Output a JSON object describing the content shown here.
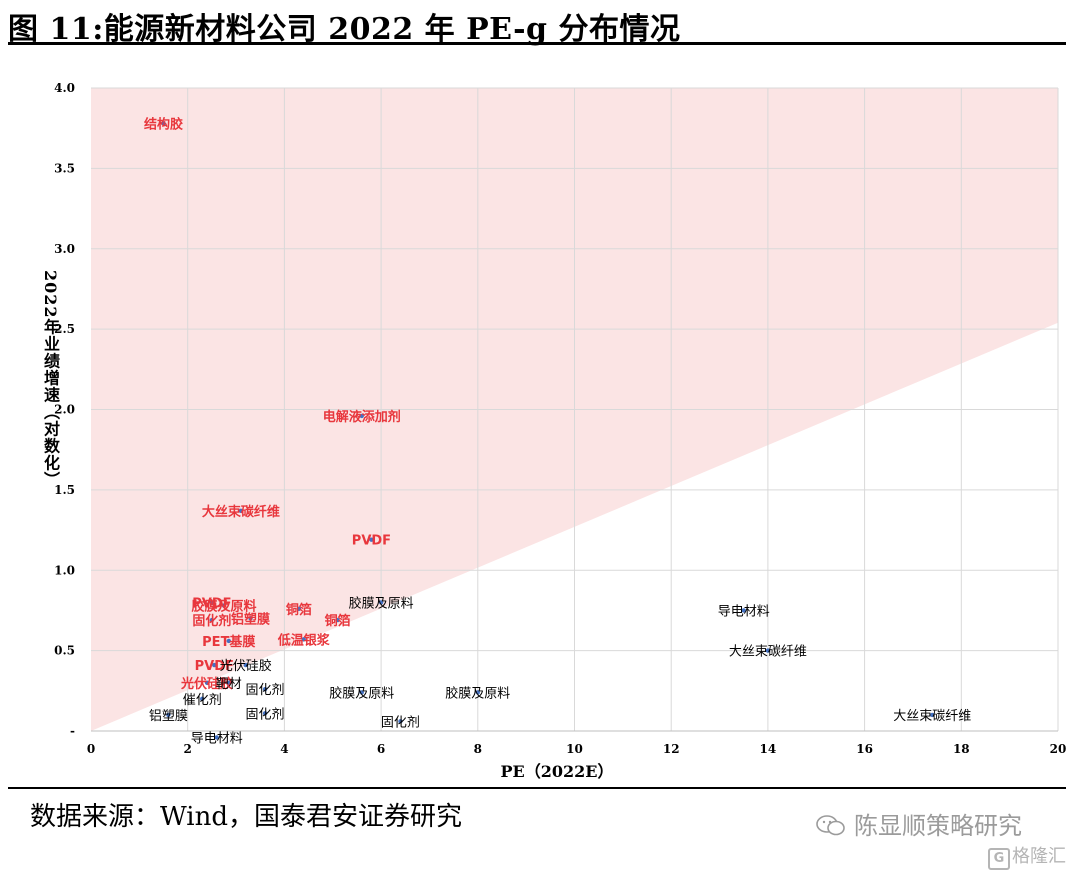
{
  "header": {
    "title": "图 11:能源新材料公司 2022 年 PE-g 分布情况"
  },
  "footer": {
    "source": "数据来源：Wind，国泰君安证券研究",
    "watermark": "陈显顺策略研究",
    "brand": "格隆汇",
    "brand_icon": "G"
  },
  "colors": {
    "highlight_region": "#fbe4e4",
    "point": "#4472c4",
    "label_red": "#e8373d",
    "label_black": "#000000",
    "grid": "#d9d9d9"
  },
  "chart_data": {
    "type": "scatter",
    "title": "",
    "xlabel": "PE（2022E）",
    "ylabel": "2022年业绩增速（对数化）",
    "xlim": [
      0,
      20
    ],
    "ylim": [
      0,
      4.0
    ],
    "x_ticks": [
      0,
      2,
      4,
      6,
      8,
      10,
      12,
      14,
      16,
      18,
      20
    ],
    "x_tick_labels": [
      "0",
      "2",
      "4",
      "6",
      "8",
      "10",
      "12",
      "14",
      "16",
      "18",
      "20"
    ],
    "y_ticks": [
      0,
      0.5,
      1.0,
      1.5,
      2.0,
      2.5,
      3.0,
      3.5,
      4.0
    ],
    "y_tick_labels": [
      "-",
      "0.5",
      "1.0",
      "1.5",
      "2.0",
      "2.5",
      "3.0",
      "3.5",
      "4.0"
    ],
    "grid": true,
    "highlight_region": {
      "description": "y > 0.127·x",
      "boundary_at_x": [
        0,
        20
      ],
      "boundary_y": [
        0,
        2.54
      ]
    },
    "points": [
      {
        "label": "结构胶",
        "x": 1.5,
        "y": 3.78,
        "group": "red"
      },
      {
        "label": "电解液添加剂",
        "x": 5.6,
        "y": 1.96,
        "group": "red"
      },
      {
        "label": "大丝束碳纤维",
        "x": 3.1,
        "y": 1.37,
        "group": "red"
      },
      {
        "label": "PVDF",
        "x": 5.8,
        "y": 1.19,
        "group": "red"
      },
      {
        "label": "PVDF",
        "x": 2.5,
        "y": 0.8,
        "group": "red"
      },
      {
        "label": "胶膜及原料",
        "x": 2.75,
        "y": 0.78,
        "group": "red"
      },
      {
        "label": "铜箔",
        "x": 4.3,
        "y": 0.76,
        "group": "red"
      },
      {
        "label": "固化剂",
        "x": 2.5,
        "y": 0.69,
        "group": "red"
      },
      {
        "label": "铝塑膜",
        "x": 3.3,
        "y": 0.7,
        "group": "red"
      },
      {
        "label": "铜箔",
        "x": 5.1,
        "y": 0.69,
        "group": "red"
      },
      {
        "label": "PET基膜",
        "x": 2.85,
        "y": 0.56,
        "group": "red"
      },
      {
        "label": "低温银浆",
        "x": 4.4,
        "y": 0.57,
        "group": "red"
      },
      {
        "label": "PVDF",
        "x": 2.55,
        "y": 0.41,
        "group": "red"
      },
      {
        "label": "光伏硅胶",
        "x": 2.4,
        "y": 0.3,
        "group": "red"
      },
      {
        "label": "胶膜及原料",
        "x": 6.0,
        "y": 0.8,
        "group": "black"
      },
      {
        "label": "导电材料",
        "x": 13.5,
        "y": 0.75,
        "group": "black"
      },
      {
        "label": "大丝束碳纤维",
        "x": 14.0,
        "y": 0.5,
        "group": "black"
      },
      {
        "label": "光伏硅胶",
        "x": 3.2,
        "y": 0.41,
        "group": "black"
      },
      {
        "label": "靶材",
        "x": 2.85,
        "y": 0.3,
        "group": "black"
      },
      {
        "label": "固化剂",
        "x": 3.6,
        "y": 0.26,
        "group": "black"
      },
      {
        "label": "胶膜及原料",
        "x": 5.6,
        "y": 0.24,
        "group": "black"
      },
      {
        "label": "胶膜及原料",
        "x": 8.0,
        "y": 0.24,
        "group": "black"
      },
      {
        "label": "催化剂",
        "x": 2.3,
        "y": 0.2,
        "group": "black"
      },
      {
        "label": "固化剂",
        "x": 3.6,
        "y": 0.11,
        "group": "black"
      },
      {
        "label": "铝塑膜",
        "x": 1.6,
        "y": 0.1,
        "group": "black"
      },
      {
        "label": "大丝束碳纤维",
        "x": 17.4,
        "y": 0.1,
        "group": "black"
      },
      {
        "label": "固化剂",
        "x": 6.4,
        "y": 0.06,
        "group": "black"
      },
      {
        "label": "导电材料",
        "x": 2.6,
        "y": -0.04,
        "group": "black"
      }
    ]
  }
}
